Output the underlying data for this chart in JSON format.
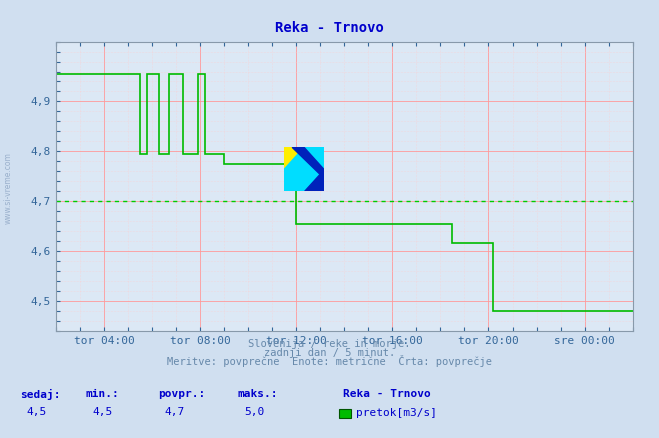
{
  "title": "Reka - Trnovo",
  "bg_color": "#d0dff0",
  "plot_bg_color": "#dce8f5",
  "grid_color_red": "#ff9999",
  "grid_color_pink": "#ffcccc",
  "avg_line_value": 4.7,
  "title_color": "#0000cc",
  "line_color": "#00bb00",
  "axis_color": "#336699",
  "ylim": [
    4.44,
    5.02
  ],
  "yticks": [
    4.5,
    4.6,
    4.7,
    4.8,
    4.9
  ],
  "xtick_positions": [
    2,
    6,
    10,
    14,
    18,
    22
  ],
  "xtick_labels": [
    "tor 04:00",
    "tor 08:00",
    "tor 12:00",
    "tor 16:00",
    "tor 20:00",
    "sre 00:00"
  ],
  "xlim": [
    0,
    24
  ],
  "footer_line1": "Slovenija / reke in morje.",
  "footer_line2": "zadnji dan / 5 minut.",
  "footer_line3": "Meritve: povprečne  Enote: metrične  Črta: povprečje",
  "stats_labels": [
    "sedaj:",
    "min.:",
    "povpr.:",
    "maks.:"
  ],
  "stats_values": [
    "4,5",
    "4,5",
    "4,7",
    "5,0"
  ],
  "legend_label": "pretok[m3/s]",
  "legend_station": "Reka - Trnovo",
  "sidebar_text": "www.si-vreme.com",
  "steps": [
    [
      0.0,
      4.955
    ],
    [
      3.5,
      4.955
    ],
    [
      3.5,
      4.795
    ],
    [
      3.8,
      4.795
    ],
    [
      3.8,
      4.955
    ],
    [
      4.3,
      4.955
    ],
    [
      4.3,
      4.795
    ],
    [
      4.7,
      4.795
    ],
    [
      4.7,
      4.955
    ],
    [
      5.1,
      4.955
    ],
    [
      5.1,
      4.955
    ],
    [
      5.3,
      4.955
    ],
    [
      5.3,
      4.795
    ],
    [
      5.9,
      4.795
    ],
    [
      5.9,
      4.955
    ],
    [
      6.2,
      4.955
    ],
    [
      6.2,
      4.795
    ],
    [
      7.0,
      4.795
    ],
    [
      7.0,
      4.775
    ],
    [
      10.0,
      4.775
    ],
    [
      10.0,
      4.655
    ],
    [
      16.5,
      4.655
    ],
    [
      16.5,
      4.615
    ],
    [
      18.2,
      4.615
    ],
    [
      18.2,
      4.48
    ],
    [
      24.0,
      4.48
    ]
  ]
}
